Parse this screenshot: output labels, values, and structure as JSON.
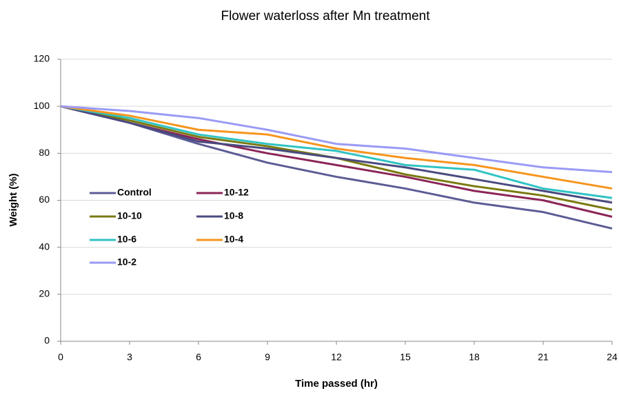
{
  "chart_data": {
    "type": "line",
    "title": "Flower waterloss after Mn treatment",
    "x_label": "Time passed (hr)",
    "y_label": "Weight (%)",
    "x": [
      0,
      3,
      6,
      9,
      12,
      15,
      18,
      21,
      24
    ],
    "xlim": [
      0,
      24
    ],
    "xticks": [
      0,
      3,
      6,
      9,
      12,
      15,
      18,
      21,
      24
    ],
    "ylim": [
      0,
      120
    ],
    "yticks": [
      0,
      20,
      40,
      60,
      80,
      100,
      120
    ],
    "grid": true,
    "series": [
      {
        "name": "Control",
        "color": "#5b5b95",
        "values": [
          100,
          93,
          84,
          76,
          70,
          65,
          59,
          55,
          48
        ]
      },
      {
        "name": "10-12",
        "color": "#8b2557",
        "values": [
          100,
          93,
          86,
          80,
          75,
          70,
          64,
          60,
          53
        ]
      },
      {
        "name": "10-10",
        "color": "#7a7a10",
        "values": [
          100,
          94,
          87,
          83,
          78,
          71,
          66,
          62,
          56
        ]
      },
      {
        "name": "10-8",
        "color": "#4a4a80",
        "values": [
          100,
          93,
          85,
          82,
          78,
          74,
          69,
          64,
          59
        ]
      },
      {
        "name": "10-6",
        "color": "#30c3c3",
        "values": [
          100,
          95,
          88,
          84,
          81,
          75,
          73,
          65,
          61
        ]
      },
      {
        "name": "10-4",
        "color": "#f7941d",
        "values": [
          100,
          96,
          90,
          88,
          82,
          78,
          75,
          70,
          65
        ]
      },
      {
        "name": "10-2",
        "color": "#9a9af5",
        "values": [
          100,
          98,
          95,
          90,
          84,
          82,
          78,
          74,
          72
        ]
      }
    ]
  }
}
